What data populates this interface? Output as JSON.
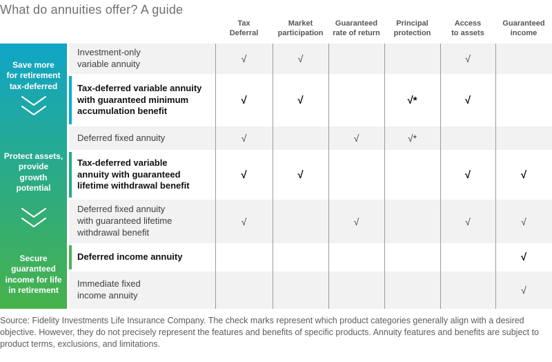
{
  "title": "What do annuities offer? A guide",
  "columns": [
    "Tax\nDeferral",
    "Market\nparticipation",
    "Guaranteed\nrate of return",
    "Principal\nprotection",
    "Access\nto assets",
    "Guaranteed\nincome"
  ],
  "sidebar": {
    "sections": [
      {
        "label": "Save more\nfor retirement\ntax-deferred"
      },
      {
        "label": "Protect assets,\nprovide\ngrowth\npotential"
      },
      {
        "label": "Secure\nguaranteed\nincome for life\nin retirement"
      }
    ]
  },
  "rows": [
    {
      "product": "Investment-only\nvariable annuity",
      "bold": false,
      "accent": "",
      "checks": [
        "√",
        "√",
        "",
        "",
        "√",
        ""
      ]
    },
    {
      "product": "Tax-deferred variable annuity\nwith guaranteed minimum\naccumulation benefit",
      "bold": true,
      "accent": "#00b0ca",
      "checks": [
        "√",
        "√",
        "",
        "√*",
        "√",
        ""
      ]
    },
    {
      "product": "Deferred fixed annuity",
      "bold": false,
      "accent": "",
      "checks": [
        "√",
        "",
        "√",
        "√*",
        "",
        ""
      ]
    },
    {
      "product": "Tax-deferred variable\nannuity with guaranteed\nlifetime withdrawal benefit",
      "bold": true,
      "accent": "#23ac85",
      "checks": [
        "√",
        "√",
        "",
        "",
        "√",
        "√"
      ]
    },
    {
      "product": "Deferred fixed annuity\nwith guaranteed lifetime\nwithdrawal benefit",
      "bold": false,
      "accent": "",
      "checks": [
        "√",
        "",
        "√",
        "",
        "√",
        "√"
      ]
    },
    {
      "product": "Deferred income annuity",
      "bold": true,
      "accent": "#4ab54e",
      "checks": [
        "",
        "",
        "",
        "",
        "",
        "√"
      ]
    },
    {
      "product": "Immediate fixed\nincome annuity",
      "bold": false,
      "accent": "",
      "checks": [
        "",
        "",
        "",
        "",
        "",
        "√"
      ]
    }
  ],
  "footer": "Source: Fidelity Investments Life Insurance Company. The check marks represent which product categories generally align with a desired objective. However, they do not precisely represent the features and benefits of specific products. Annuity features and benefits are subject to product terms, exclusions, and limitations.",
  "colors": {
    "gradient_top": "#10a5c7",
    "gradient_mid": "#2cab84",
    "gradient_bottom": "#47b24b",
    "alt_row_bg": "#f2f2f2",
    "separator": "#999a9c",
    "header_text": "#53565a",
    "title_text": "#6d7074"
  },
  "chart_data": {
    "type": "table",
    "title": "What do annuities offer? A guide",
    "columns": [
      "Tax Deferral",
      "Market participation",
      "Guaranteed rate of return",
      "Principal protection",
      "Access to assets",
      "Guaranteed income"
    ],
    "row_groups": [
      {
        "objective": "Save more for retirement tax-deferred",
        "products": [
          "Investment-only variable annuity",
          "Tax-deferred variable annuity with guaranteed minimum accumulation benefit",
          "Deferred fixed annuity"
        ]
      },
      {
        "objective": "Protect assets, provide growth potential",
        "products": [
          "Tax-deferred variable annuity with guaranteed lifetime withdrawal benefit",
          "Deferred fixed annuity with guaranteed lifetime withdrawal benefit"
        ]
      },
      {
        "objective": "Secure guaranteed income for life in retirement",
        "products": [
          "Deferred income annuity",
          "Immediate fixed income annuity"
        ]
      }
    ],
    "rows": [
      {
        "product": "Investment-only variable annuity",
        "checks": [
          "√",
          "√",
          "",
          "",
          "√",
          ""
        ]
      },
      {
        "product": "Tax-deferred variable annuity with guaranteed minimum accumulation benefit",
        "checks": [
          "√",
          "√",
          "",
          "√*",
          "√",
          ""
        ]
      },
      {
        "product": "Deferred fixed annuity",
        "checks": [
          "√",
          "",
          "√",
          "√*",
          "",
          ""
        ]
      },
      {
        "product": "Tax-deferred variable annuity with guaranteed lifetime withdrawal benefit",
        "checks": [
          "√",
          "√",
          "",
          "",
          "√",
          "√"
        ]
      },
      {
        "product": "Deferred fixed annuity with guaranteed lifetime withdrawal benefit",
        "checks": [
          "√",
          "",
          "√",
          "",
          "√",
          "√"
        ]
      },
      {
        "product": "Deferred income annuity",
        "checks": [
          "",
          "",
          "",
          "",
          "",
          "√"
        ]
      },
      {
        "product": "Immediate fixed income annuity",
        "checks": [
          "",
          "",
          "",
          "",
          "",
          "√"
        ]
      }
    ],
    "footnote": "Source: Fidelity Investments Life Insurance Company. The check marks represent which product categories generally align with a desired objective. However, they do not precisely represent the features and benefits of specific products. Annuity features and benefits are subject to product terms, exclusions, and limitations."
  }
}
